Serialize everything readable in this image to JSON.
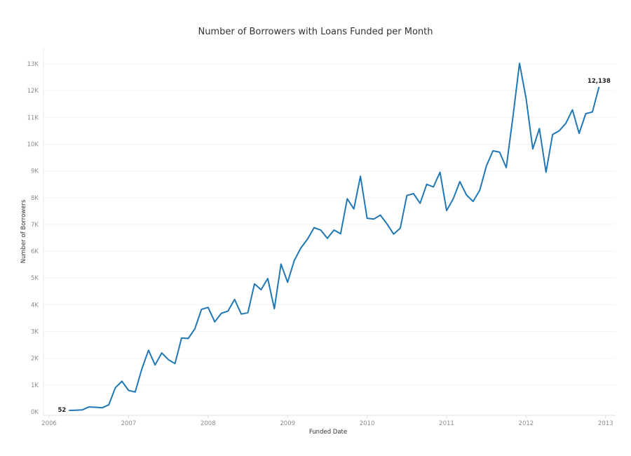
{
  "chart_data": {
    "type": "line",
    "title": "Number of Borrowers with Loans Funded per Month",
    "xlabel": "Funded Date",
    "ylabel": "Number of Borrowers",
    "ylim": [
      0,
      13000
    ],
    "y_ticks": [
      "0K",
      "1K",
      "2K",
      "3K",
      "4K",
      "5K",
      "6K",
      "7K",
      "8K",
      "9K",
      "10K",
      "11K",
      "12K",
      "13K"
    ],
    "x_ticks": [
      "2006",
      "2007",
      "2008",
      "2009",
      "2010",
      "2011",
      "2012",
      "2013"
    ],
    "x_range": [
      "2006-01",
      "2013-01"
    ],
    "grid": {
      "horizontal": true,
      "vertical": false
    },
    "legend": null,
    "line_color": "#1f77b4",
    "series": [
      {
        "name": "Number of Borrowers",
        "x": [
          "2006-04",
          "2006-05",
          "2006-06",
          "2006-07",
          "2006-08",
          "2006-09",
          "2006-10",
          "2006-11",
          "2006-12",
          "2007-01",
          "2007-02",
          "2007-03",
          "2007-04",
          "2007-05",
          "2007-06",
          "2007-07",
          "2007-08",
          "2007-09",
          "2007-10",
          "2007-11",
          "2007-12",
          "2008-01",
          "2008-02",
          "2008-03",
          "2008-04",
          "2008-05",
          "2008-06",
          "2008-07",
          "2008-08",
          "2008-09",
          "2008-10",
          "2008-11",
          "2008-12",
          "2009-01",
          "2009-02",
          "2009-03",
          "2009-04",
          "2009-05",
          "2009-06",
          "2009-07",
          "2009-08",
          "2009-09",
          "2009-10",
          "2009-11",
          "2009-12",
          "2010-01",
          "2010-02",
          "2010-03",
          "2010-04",
          "2010-05",
          "2010-06",
          "2010-07",
          "2010-08",
          "2010-09",
          "2010-10",
          "2010-11",
          "2010-12",
          "2011-01",
          "2011-02",
          "2011-03",
          "2011-04",
          "2011-05",
          "2011-06",
          "2011-07",
          "2011-08",
          "2011-09",
          "2011-10",
          "2011-11",
          "2011-12",
          "2012-01",
          "2012-02",
          "2012-03",
          "2012-04",
          "2012-05",
          "2012-06",
          "2012-07",
          "2012-08",
          "2012-09",
          "2012-10",
          "2012-11",
          "2012-12"
        ],
        "values": [
          52,
          60,
          70,
          180,
          170,
          150,
          260,
          900,
          1140,
          800,
          740,
          1600,
          2300,
          1750,
          2200,
          1950,
          1800,
          2760,
          2740,
          3100,
          3830,
          3900,
          3360,
          3680,
          3760,
          4200,
          3650,
          3700,
          4780,
          4560,
          4980,
          3850,
          5520,
          4840,
          5650,
          6120,
          6450,
          6880,
          6790,
          6480,
          6790,
          6650,
          7960,
          7580,
          8800,
          7230,
          7200,
          7350,
          7020,
          6640,
          6860,
          8080,
          8150,
          7790,
          8500,
          8400,
          8950,
          7520,
          7960,
          8600,
          8100,
          7860,
          8280,
          9180,
          9750,
          9700,
          9120,
          11000,
          13020,
          11700,
          9820,
          10580,
          8950,
          10360,
          10500,
          10780,
          11280,
          10400,
          11140,
          11200,
          12138
        ]
      }
    ],
    "annotations": [
      {
        "x": "2006-04",
        "label": "52",
        "position": "left"
      },
      {
        "x": "2012-12",
        "label": "12,138",
        "position": "above"
      }
    ]
  }
}
